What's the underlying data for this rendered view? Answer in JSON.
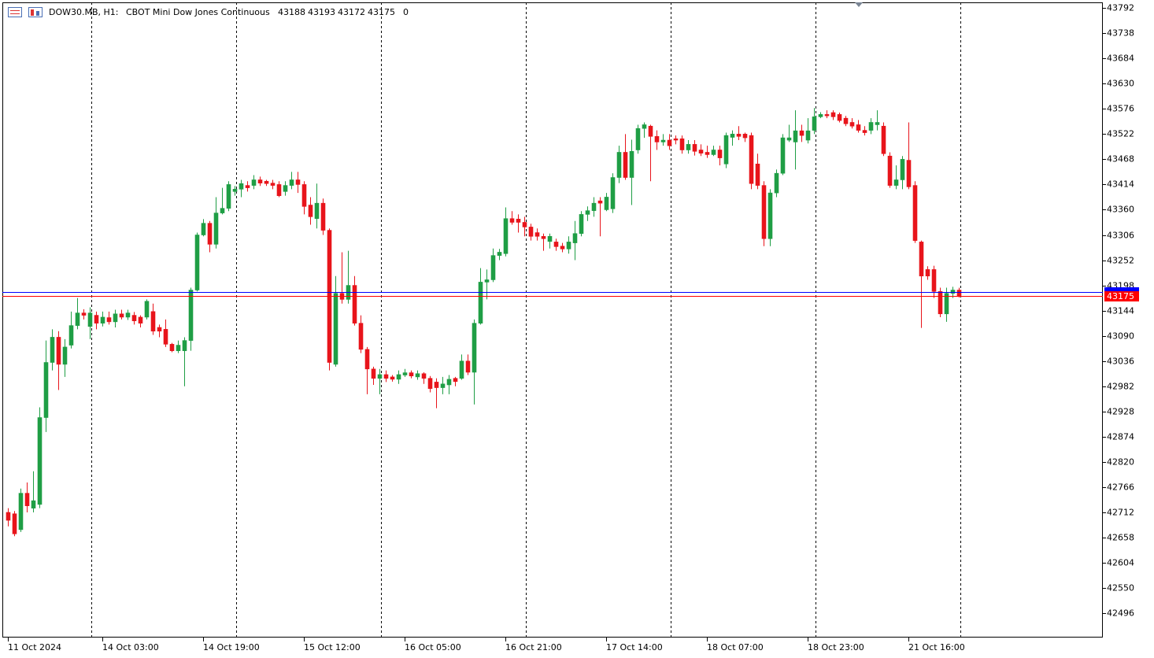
{
  "header": {
    "symbol": "DOW30.MB, H1:",
    "description": "CBOT Mini Dow Jones Continuous",
    "volume": 0
  },
  "chart_data": {
    "type": "candlestick",
    "up_color": "#1f9e45",
    "down_color": "#e8141b",
    "categories": [
      "11 Oct 2024",
      null,
      null,
      null,
      null,
      null,
      null,
      null,
      null,
      null,
      null,
      null,
      null,
      null,
      null,
      "14 Oct 03:00",
      null,
      null,
      null,
      null,
      null,
      null,
      null,
      null,
      null,
      null,
      null,
      null,
      null,
      null,
      null,
      "14 Oct 19:00",
      null,
      null,
      null,
      null,
      null,
      null,
      null,
      null,
      null,
      null,
      null,
      null,
      null,
      null,
      null,
      "15 Oct 12:00",
      null,
      null,
      null,
      null,
      null,
      null,
      null,
      null,
      null,
      null,
      null,
      null,
      null,
      null,
      null,
      "16 Oct 05:00",
      null,
      null,
      null,
      null,
      null,
      null,
      null,
      null,
      null,
      null,
      null,
      null,
      null,
      null,
      null,
      "16 Oct 21:00",
      null,
      null,
      null,
      null,
      null,
      null,
      null,
      null,
      null,
      null,
      null,
      null,
      null,
      null,
      null,
      "17 Oct 14:00",
      null,
      null,
      null,
      null,
      null,
      null,
      null,
      null,
      null,
      null,
      null,
      null,
      null,
      null,
      null,
      "18 Oct 07:00",
      null,
      null,
      null,
      null,
      null,
      null,
      null,
      null,
      null,
      null,
      null,
      null,
      null,
      null,
      null,
      "18 Oct 23:00",
      null,
      null,
      null,
      null,
      null,
      null,
      null,
      null,
      null,
      null,
      null,
      null,
      null,
      null,
      null,
      "21 Oct 16:00",
      null,
      null,
      null,
      null,
      null,
      null,
      null,
      null
    ],
    "open": [
      42712,
      42709,
      42675,
      42753,
      42721,
      42729,
      42915,
      43033,
      43087,
      43029,
      43070,
      43112,
      43139,
      43110,
      43134,
      43117,
      43129,
      43120,
      43137,
      43130,
      43134,
      43130,
      43130,
      43142,
      43108,
      43104,
      43072,
      43058,
      43058,
      43080,
      43188,
      43306,
      43331,
      43286,
      43353,
      43363,
      43399,
      43404,
      43412,
      43412,
      43424,
      43421,
      43417,
      43414,
      43399,
      43412,
      43424,
      43414,
      43370,
      43341,
      43374,
      43316,
      43029,
      43181,
      43168,
      43198,
      43117,
      43061,
      43019,
      42999,
      43007,
      43002,
      42997,
      43006,
      43011,
      43002,
      43009,
      42999,
      42991,
      42979,
      42985,
      42999,
      42999,
      43036,
      43012,
      43117,
      43205,
      43210,
      43262,
      43266,
      43341,
      43340,
      43333,
      43323,
      43311,
      43303,
      43292,
      43291,
      43282,
      43276,
      43289,
      43309,
      43350,
      43358,
      43379,
      43360,
      43362,
      43429,
      43483,
      43429,
      43488,
      43534,
      43539,
      43517,
      43505,
      43509,
      43512,
      43512,
      43488,
      43500,
      43488,
      43483,
      43478,
      43488,
      43458,
      43515,
      43522,
      43522,
      43519,
      43458,
      43412,
      43298,
      43396,
      43438,
      43509,
      43505,
      43529,
      43509,
      43530,
      43559,
      43564,
      43568,
      43564,
      43556,
      43547,
      43542,
      43530,
      43530,
      43542,
      43539,
      43475,
      43412,
      43424,
      43466,
      43412,
      43291,
      43232,
      43232,
      43185,
      43137,
      43181,
      43188
    ],
    "high": [
      42721,
      42715,
      42763,
      42776,
      42800,
      42937,
      43080,
      43104,
      43100,
      43083,
      43142,
      43171,
      43147,
      43151,
      43142,
      43142,
      43142,
      43146,
      43146,
      43146,
      43141,
      43134,
      43168,
      43159,
      43114,
      43125,
      43075,
      43080,
      43087,
      43193,
      43311,
      43340,
      43336,
      43387,
      43407,
      43421,
      43411,
      43424,
      43421,
      43434,
      43431,
      43424,
      43424,
      43421,
      43421,
      43441,
      43441,
      43421,
      43387,
      43416,
      43384,
      43320,
      43218,
      43269,
      43272,
      43218,
      43134,
      43066,
      43024,
      43019,
      43016,
      43006,
      43016,
      43019,
      43016,
      43016,
      43012,
      43004,
      42999,
      43002,
      43006,
      43002,
      43050,
      43050,
      43125,
      43235,
      43232,
      43277,
      43276,
      43365,
      43357,
      43350,
      43345,
      43330,
      43320,
      43309,
      43309,
      43298,
      43289,
      43303,
      43336,
      43357,
      43367,
      43387,
      43387,
      43396,
      43438,
      43497,
      43522,
      43510,
      43542,
      43547,
      43542,
      43530,
      43522,
      43522,
      43519,
      43519,
      43509,
      43509,
      43500,
      43497,
      43497,
      43497,
      43525,
      43530,
      43539,
      43525,
      43525,
      43480,
      43421,
      43404,
      43446,
      43522,
      43542,
      43573,
      43542,
      43556,
      43578,
      43569,
      43573,
      43573,
      43568,
      43561,
      43556,
      43552,
      43539,
      43556,
      43573,
      43547,
      43483,
      43455,
      43475,
      43547,
      43421,
      43294,
      43239,
      43240,
      43193,
      43193,
      43195,
      43193
    ],
    "low": [
      42682,
      42661,
      42670,
      42712,
      42712,
      42721,
      42884,
      43016,
      42974,
      43002,
      43063,
      43104,
      43125,
      43083,
      43104,
      43110,
      43114,
      43108,
      43125,
      43124,
      43114,
      43108,
      43125,
      43092,
      43087,
      43066,
      43055,
      43053,
      42982,
      43058,
      43185,
      43303,
      43269,
      43277,
      43350,
      43357,
      43390,
      43387,
      43399,
      43404,
      43411,
      43411,
      43404,
      43387,
      43390,
      43404,
      43396,
      43350,
      43328,
      43320,
      43306,
      43016,
      43024,
      43159,
      43159,
      43112,
      43053,
      42965,
      42985,
      42965,
      42991,
      42992,
      42987,
      43002,
      42999,
      42996,
      42987,
      42969,
      42935,
      42965,
      42965,
      42982,
      42996,
      43006,
      42943,
      43114,
      43168,
      43205,
      43252,
      43260,
      43328,
      43311,
      43303,
      43294,
      43294,
      43272,
      43277,
      43272,
      43269,
      43266,
      43252,
      43303,
      43336,
      43345,
      43303,
      43357,
      43353,
      43417,
      43424,
      43370,
      43480,
      43514,
      43421,
      43488,
      43497,
      43488,
      43500,
      43480,
      43480,
      43476,
      43475,
      43471,
      43475,
      43455,
      43449,
      43497,
      43509,
      43505,
      43404,
      43404,
      43282,
      43282,
      43387,
      43434,
      43505,
      43446,
      43505,
      43502,
      43522,
      43556,
      43556,
      43552,
      43547,
      43539,
      43534,
      43525,
      43519,
      43522,
      43530,
      43475,
      43407,
      43404,
      43404,
      43404,
      43289,
      43107,
      43210,
      43171,
      43130,
      43120,
      43171,
      43172
    ],
    "close": [
      42695,
      42666,
      42753,
      42726,
      42737,
      42915,
      43033,
      43087,
      43029,
      43066,
      43112,
      43139,
      43134,
      43139,
      43117,
      43130,
      43120,
      43137,
      43130,
      43139,
      43122,
      43117,
      43164,
      43100,
      43100,
      43072,
      43058,
      43070,
      43080,
      43188,
      43306,
      43331,
      43286,
      43353,
      43363,
      43414,
      43404,
      43416,
      43407,
      43424,
      43417,
      43416,
      43412,
      43390,
      43412,
      43424,
      43414,
      43367,
      43345,
      43374,
      43316,
      43033,
      43181,
      43168,
      43198,
      43117,
      43061,
      43019,
      42999,
      43007,
      42999,
      42997,
      43007,
      43011,
      43004,
      43009,
      42999,
      42977,
      42979,
      42987,
      42997,
      42992,
      43036,
      43012,
      43117,
      43205,
      43210,
      43262,
      43269,
      43341,
      43333,
      43333,
      43323,
      43303,
      43303,
      43298,
      43303,
      43281,
      43276,
      43291,
      43309,
      43350,
      43358,
      43374,
      43374,
      43387,
      43429,
      43483,
      43429,
      43485,
      43534,
      43542,
      43517,
      43505,
      43509,
      43497,
      43509,
      43488,
      43500,
      43485,
      43481,
      43478,
      43488,
      43471,
      43519,
      43522,
      43517,
      43514,
      43416,
      43412,
      43298,
      43396,
      43438,
      43514,
      43514,
      43529,
      43519,
      43529,
      43559,
      43564,
      43561,
      43559,
      43551,
      43544,
      43539,
      43530,
      43525,
      43547,
      43547,
      43480,
      43412,
      43424,
      43468,
      43409,
      43294,
      43218,
      43218,
      43185,
      43137,
      43181,
      43188,
      43175
    ],
    "ylim": [
      42444,
      43804
    ],
    "yticks": [
      43792,
      43738,
      43684,
      43630,
      43576,
      43522,
      43468,
      43414,
      43360,
      43306,
      43252,
      43198,
      43144,
      43090,
      43036,
      42982,
      42928,
      42874,
      42820,
      42766,
      42712,
      42658,
      42604,
      42550,
      42496
    ],
    "price_lines": [
      {
        "value": 43183,
        "color": "#0000ff"
      },
      {
        "value": 43175,
        "color": "#ff0000"
      }
    ]
  }
}
